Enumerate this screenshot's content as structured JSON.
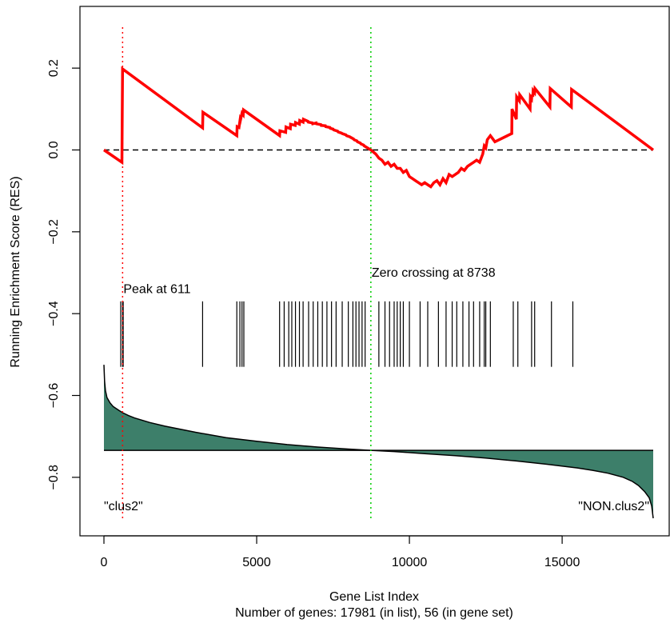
{
  "chart_data": {
    "type": "line",
    "xlabel": "Gene List Index",
    "ylabel": "Running Enrichment Score (RES)",
    "subtitle": "Number of genes: 17981 (in list), 56 (in gene set)",
    "xlim": [
      0,
      17981
    ],
    "ylim": [
      -0.9,
      0.3
    ],
    "x_ticks": [
      0,
      5000,
      10000,
      15000
    ],
    "y_ticks": [
      0.2,
      0.0,
      -0.2,
      -0.4,
      -0.6,
      -0.8
    ],
    "x_tick_labels": [
      "0",
      "5000",
      "10000",
      "15000"
    ],
    "y_tick_labels": [
      "0.2",
      "0.0",
      "−0.2",
      "−0.4",
      "−0.6",
      "−0.8"
    ],
    "grid": false,
    "colors": {
      "res_line": "#ff0000",
      "ranked_fill": "#3d7f6a",
      "zero_line": "#000000",
      "peak_line": "#ff0000",
      "zero_cross_line": "#00cc00"
    },
    "running_enrichment_score": {
      "x": [
        0,
        590,
        600,
        611,
        3230,
        3240,
        4350,
        4360,
        4420,
        4460,
        4470,
        4520,
        4560,
        4570,
        5750,
        5760,
        5950,
        5960,
        6100,
        6110,
        6260,
        6270,
        6400,
        6410,
        6520,
        6530,
        6680,
        6690,
        6820,
        6830,
        6950,
        6960,
        7100,
        7110,
        7250,
        7260,
        7400,
        7410,
        7500,
        7520,
        7650,
        7670,
        7780,
        7800,
        7920,
        7940,
        8050,
        8070,
        8170,
        8190,
        8280,
        8300,
        8390,
        8410,
        8500,
        8520,
        8738,
        8900,
        9000,
        9100,
        9200,
        9300,
        9400,
        9500,
        9600,
        9700,
        9800,
        9900,
        10000,
        10100,
        10200,
        10300,
        10400,
        10500,
        10600,
        10700,
        10800,
        10900,
        11000,
        11100,
        11200,
        11300,
        11400,
        11500,
        11600,
        11700,
        11800,
        11900,
        12000,
        12100,
        12200,
        12300,
        12400,
        12450,
        12500,
        12550,
        12600,
        12650,
        12700,
        12750,
        12800,
        13350,
        13360,
        13500,
        13510,
        13600,
        13610,
        13950,
        13960,
        14000,
        14010,
        14040,
        14050,
        14100,
        14110,
        14600,
        14610,
        15300,
        15310,
        17981
      ],
      "y": [
        0.0,
        -0.03,
        0.09,
        0.198,
        0.054,
        0.092,
        0.035,
        0.057,
        0.055,
        0.075,
        0.073,
        0.09,
        0.086,
        0.098,
        0.035,
        0.047,
        0.043,
        0.056,
        0.052,
        0.063,
        0.06,
        0.067,
        0.063,
        0.072,
        0.068,
        0.075,
        0.07,
        0.068,
        0.066,
        0.064,
        0.066,
        0.064,
        0.062,
        0.06,
        0.059,
        0.057,
        0.055,
        0.053,
        0.051,
        0.049,
        0.046,
        0.044,
        0.041,
        0.04,
        0.037,
        0.035,
        0.032,
        0.031,
        0.027,
        0.025,
        0.022,
        0.02,
        0.017,
        0.015,
        0.012,
        0.01,
        0.0,
        -0.01,
        -0.02,
        -0.025,
        -0.035,
        -0.03,
        -0.04,
        -0.035,
        -0.045,
        -0.045,
        -0.055,
        -0.05,
        -0.065,
        -0.07,
        -0.075,
        -0.08,
        -0.085,
        -0.08,
        -0.085,
        -0.09,
        -0.08,
        -0.075,
        -0.085,
        -0.07,
        -0.08,
        -0.06,
        -0.065,
        -0.06,
        -0.055,
        -0.045,
        -0.05,
        -0.04,
        -0.035,
        -0.03,
        -0.025,
        -0.03,
        -0.01,
        0.01,
        0.005,
        0.025,
        0.03,
        0.035,
        0.03,
        0.025,
        0.02,
        0.04,
        0.1,
        0.075,
        0.13,
        0.12,
        0.135,
        0.1,
        0.13,
        0.125,
        0.135,
        0.13,
        0.145,
        0.14,
        0.15,
        0.105,
        0.15,
        0.105,
        0.148,
        0.0
      ]
    },
    "gene_set_hits": [
      550,
      611,
      630,
      3230,
      4350,
      4450,
      4520,
      4580,
      5750,
      5900,
      6050,
      6150,
      6270,
      6400,
      6520,
      6700,
      6850,
      7000,
      7150,
      7300,
      7450,
      7600,
      7800,
      8000,
      8150,
      8250,
      8350,
      8450,
      8550,
      9000,
      9200,
      9350,
      9500,
      9600,
      9700,
      9800,
      10000,
      10350,
      10600,
      10950,
      11200,
      11400,
      11550,
      11750,
      11950,
      12100,
      12300,
      12450,
      12500,
      12650,
      13400,
      13550,
      14000,
      14100,
      14650,
      15350
    ],
    "ranked_list_metric": {
      "baseline": -0.734,
      "x": [
        0,
        20,
        50,
        100,
        200,
        300,
        500,
        611,
        800,
        1000,
        1500,
        2000,
        3000,
        4000,
        5000,
        6000,
        7000,
        8000,
        8738,
        9500,
        10500,
        11500,
        12500,
        13500,
        14500,
        15500,
        16000,
        16500,
        17000,
        17300,
        17500,
        17700,
        17850,
        17930,
        17981
      ],
      "y": [
        -0.525,
        -0.565,
        -0.588,
        -0.605,
        -0.618,
        -0.627,
        -0.637,
        -0.642,
        -0.649,
        -0.655,
        -0.666,
        -0.675,
        -0.69,
        -0.703,
        -0.712,
        -0.72,
        -0.726,
        -0.731,
        -0.734,
        -0.737,
        -0.742,
        -0.747,
        -0.753,
        -0.76,
        -0.768,
        -0.777,
        -0.783,
        -0.79,
        -0.8,
        -0.81,
        -0.82,
        -0.835,
        -0.85,
        -0.87,
        -0.9
      ]
    },
    "peak": {
      "x": 611,
      "label": "Peak at 611"
    },
    "zero_crossing": {
      "x": 8738,
      "label": "Zero crossing at 8738"
    },
    "class_labels": {
      "left": "\"clus2\"",
      "right": "\"NON.clus2\""
    }
  }
}
